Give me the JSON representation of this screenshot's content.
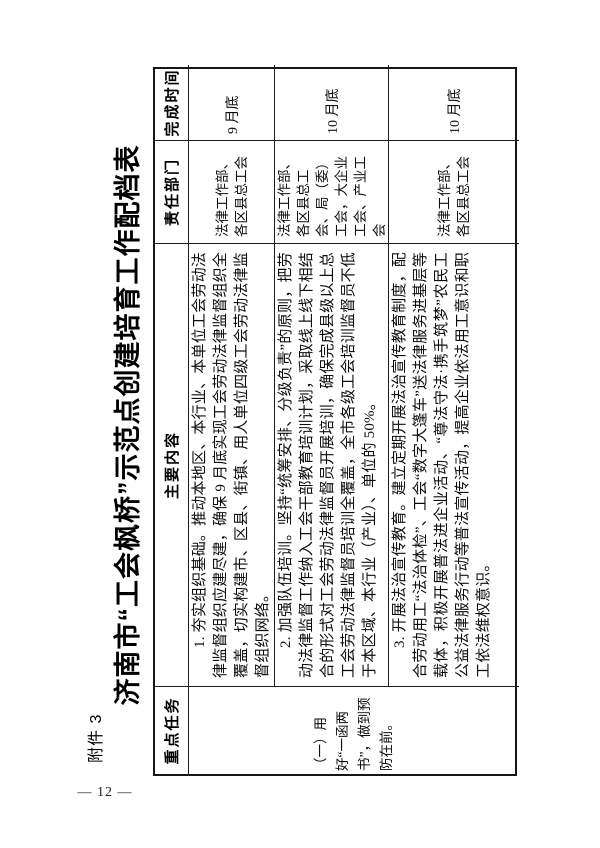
{
  "page": {
    "attachment_label": "附件 3",
    "page_number": "— 12 —"
  },
  "title": "济南市“工会枫桥”示范点创建培育工作配档表",
  "table": {
    "headers": {
      "key_task": "重点任务",
      "main_content": "主要内容",
      "department": "责任部门",
      "deadline": "完成时间"
    },
    "key_task_cell": "（一）用好“一函两书”，做到预防在前。",
    "rows": [
      {
        "content": "1. 夯实组织基础。推动本地区、本行业、本单位工会劳动法律监督组织应建尽建，确保 9 月底实现工会劳动法律监督组织全覆盖，切实构建市、区县、街镇、用人单位四级工会劳动法律监督组织网络。",
        "department": "法律工作部、各区县总工会",
        "deadline": "9 月底"
      },
      {
        "content": "2. 加强队伍培训。坚持“统筹安排、分级负责”的原则，把劳动法律监督工作纳入工会干部教育培训计划，采取线上线下相结合的形式对工会劳动法律监督员开展培训，确保完成县级以上总工会劳动法律监督员培训全覆盖，全市各级工会培训监督员不低于本区域、本行业（产业）、单位的 50%。",
        "department": "法律工作部、各区县总工会、局（委）工会，大企业工会、产业工会",
        "deadline": "10 月底"
      },
      {
        "content": "3. 开展法治宣传教育。建立定期开展法治宣传教育制度，配合劳动用工“法治体检”、工会“数字大篷车”送法律服务进基层等载体，积极开展普法进企业活动、“尊法守法·携手筑梦”农民工公益法律服务行动等普法宣传活动，提高企业依法用工意识和职工依法维权意识。",
        "department": "法律工作部、各区县总工会",
        "deadline": "10 月底"
      }
    ]
  }
}
